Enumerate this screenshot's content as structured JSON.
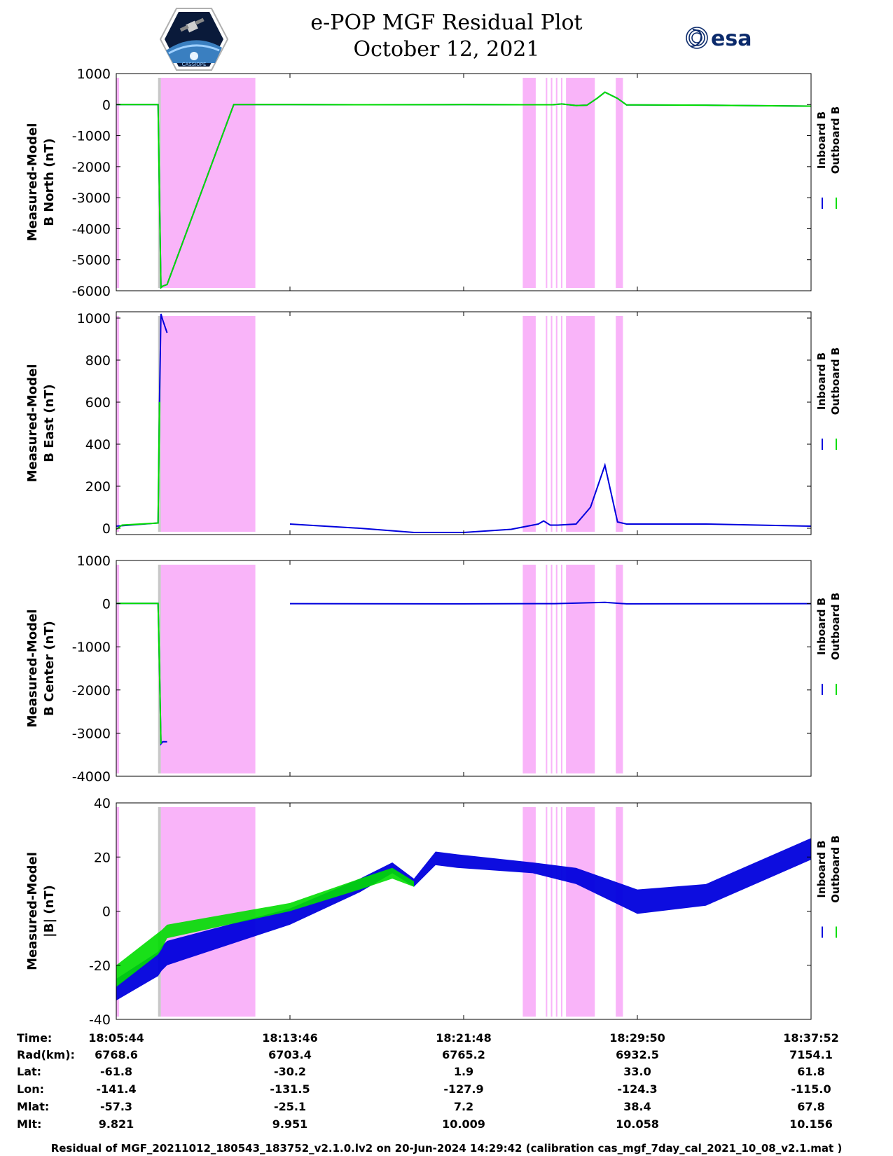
{
  "title": {
    "line1": "e-POP MGF Residual Plot",
    "line2": "October 12, 2021"
  },
  "logos": {
    "left": "CASSIOPE",
    "right": "esa"
  },
  "colors": {
    "inboard": "#0000dd",
    "outboard": "#00dd00",
    "highlight": "#f9b4f9",
    "gap": "#c8c8c8"
  },
  "legend": [
    "Inboard B",
    "Outboard B"
  ],
  "chart_data": [
    {
      "type": "line",
      "ylabel": [
        "Measured-Model",
        "B North (nT)"
      ],
      "ylim": [
        -6000,
        1000
      ],
      "yticks": [
        1000,
        0,
        -1000,
        -2000,
        -3000,
        -4000,
        -5000,
        -6000
      ],
      "series": [
        {
          "name": "Inboard B",
          "x": [
            "18:05:44",
            "18:07:40",
            "18:07:44",
            "18:07:48",
            "18:07:53",
            "18:08:05",
            "18:11:10",
            "18:13:46",
            "18:17:00",
            "18:21:48",
            "18:24:30",
            "18:25:55",
            "18:26:20",
            "18:27:00",
            "18:27:30",
            "18:27:58",
            "18:28:20",
            "18:28:55",
            "18:29:20",
            "18:29:50",
            "18:33:00",
            "18:37:52"
          ],
          "y": [
            0,
            0,
            -3000,
            -5900,
            -5850,
            -5800,
            0,
            0,
            -5,
            0,
            -5,
            -5,
            20,
            -30,
            -20,
            200,
            400,
            200,
            -10,
            -10,
            -20,
            -50
          ]
        },
        {
          "name": "Outboard B",
          "x": [
            "18:05:44",
            "18:07:40",
            "18:07:44",
            "18:07:48",
            "18:07:53",
            "18:08:05",
            "18:11:10",
            "18:13:46",
            "18:17:00",
            "18:21:48",
            "18:24:30",
            "18:25:55",
            "18:26:20",
            "18:27:00",
            "18:27:30",
            "18:27:58",
            "18:28:20",
            "18:28:55",
            "18:29:20",
            "18:29:50",
            "18:33:00",
            "18:37:52"
          ],
          "y": [
            0,
            0,
            -3000,
            -5900,
            -5850,
            -5800,
            0,
            0,
            -5,
            0,
            -5,
            -5,
            20,
            -30,
            -20,
            200,
            400,
            200,
            -10,
            -10,
            -20,
            -50
          ]
        }
      ]
    },
    {
      "type": "line",
      "ylabel": [
        "Measured-Model",
        "B East (nT)"
      ],
      "ylim": [
        -30,
        1030
      ],
      "yticks": [
        1000,
        800,
        600,
        400,
        200,
        0
      ],
      "series": [
        {
          "name": "Inboard B",
          "x": [
            "18:05:44",
            "18:07:40",
            "18:07:44",
            "18:07:48",
            "18:07:53",
            "18:08:05",
            "18:11:10",
            "18:13:46",
            "18:17:00",
            "18:19:30",
            "18:21:48",
            "18:24:00",
            "18:25:15",
            "18:25:30",
            "18:25:48",
            "18:26:10",
            "18:27:00",
            "18:27:40",
            "18:28:20",
            "18:28:55",
            "18:29:20",
            "18:33:00",
            "18:37:52"
          ],
          "y": [
            10,
            25,
            600,
            1020,
            990,
            930,
            null,
            20,
            0,
            -20,
            -20,
            -5,
            20,
            35,
            15,
            15,
            20,
            100,
            300,
            30,
            20,
            20,
            10
          ]
        },
        {
          "name": "Outboard B",
          "x": [
            "18:05:44",
            "18:06:00",
            "18:07:40",
            "18:07:44"
          ],
          "y": [
            -5,
            15,
            25,
            600
          ]
        }
      ]
    },
    {
      "type": "line",
      "ylabel": [
        "Measured-Model",
        "B Center (nT)"
      ],
      "ylim": [
        -4000,
        1000
      ],
      "yticks": [
        1000,
        0,
        -1000,
        -2000,
        -3000,
        -4000
      ],
      "series": [
        {
          "name": "Inboard B",
          "x": [
            "18:05:44",
            "18:07:40",
            "18:07:44",
            "18:07:48",
            "18:07:53",
            "18:08:05",
            "18:11:10",
            "18:13:46",
            "18:21:48",
            "18:26:00",
            "18:28:20",
            "18:29:20",
            "18:37:52"
          ],
          "y": [
            5,
            5,
            -1500,
            -3250,
            -3200,
            -3200,
            null,
            0,
            -5,
            0,
            30,
            -5,
            0
          ]
        },
        {
          "name": "Outboard B",
          "x": [
            "18:05:44",
            "18:07:40",
            "18:07:44",
            "18:07:48"
          ],
          "y": [
            5,
            5,
            -1500,
            -3250
          ]
        }
      ]
    },
    {
      "type": "area",
      "ylabel": [
        "Measured-Model",
        "|B| (nT)"
      ],
      "ylim": [
        -40,
        40
      ],
      "yticks": [
        40,
        20,
        0,
        -20,
        -40
      ],
      "series": [
        {
          "name": "Inboard B",
          "x": [
            "18:05:44",
            "18:07:40",
            "18:07:50",
            "18:08:05",
            "18:13:46",
            "18:17:00",
            "18:18:30",
            "18:19:30",
            "18:20:30",
            "18:21:30",
            "18:25:00",
            "18:27:00",
            "18:29:50",
            "18:33:00",
            "18:37:52"
          ],
          "y_low": [
            -33,
            -24,
            -22,
            -20,
            -5,
            7,
            14,
            9,
            17,
            16,
            14,
            10,
            -1,
            2,
            19
          ],
          "y_high": [
            -25,
            -15,
            -13,
            -11,
            1,
            12,
            18,
            12,
            22,
            21,
            18,
            16,
            8,
            10,
            27
          ]
        },
        {
          "name": "Outboard B",
          "x": [
            "18:05:44",
            "18:07:40",
            "18:07:50",
            "18:08:05",
            "18:13:46",
            "18:17:00",
            "18:18:30",
            "18:19:30"
          ],
          "y_low": [
            -28,
            -16,
            -14,
            -10,
            0,
            8,
            12,
            9
          ],
          "y_high": [
            -20,
            -8,
            -7,
            -5,
            3,
            12,
            16,
            11
          ]
        }
      ]
    }
  ],
  "shaded_intervals": [
    {
      "start": "18:05:44",
      "end": "18:05:52",
      "kind": "highlight"
    },
    {
      "start": "18:07:40",
      "end": "18:07:48",
      "kind": "gap"
    },
    {
      "start": "18:07:48",
      "end": "18:12:10",
      "kind": "highlight"
    },
    {
      "start": "18:24:32",
      "end": "18:25:08",
      "kind": "highlight"
    },
    {
      "start": "18:25:36",
      "end": "18:25:40",
      "kind": "highlight"
    },
    {
      "start": "18:25:50",
      "end": "18:25:54",
      "kind": "highlight"
    },
    {
      "start": "18:26:04",
      "end": "18:26:08",
      "kind": "highlight"
    },
    {
      "start": "18:26:18",
      "end": "18:26:22",
      "kind": "highlight"
    },
    {
      "start": "18:26:32",
      "end": "18:27:52",
      "kind": "highlight"
    },
    {
      "start": "18:28:50",
      "end": "18:29:10",
      "kind": "highlight"
    }
  ],
  "x_ticks": [
    "18:05:44",
    "18:13:46",
    "18:21:48",
    "18:29:50",
    "18:37:52"
  ],
  "ephemeris": {
    "labels": [
      "Time:",
      "Rad(km):",
      "Lat:",
      "Lon:",
      "Mlat:",
      "Mlt:"
    ],
    "columns": [
      [
        "18:05:44",
        "6768.6",
        "-61.8",
        "-141.4",
        "-57.3",
        "9.821"
      ],
      [
        "18:13:46",
        "6703.4",
        "-30.2",
        "-131.5",
        "-25.1",
        "9.951"
      ],
      [
        "18:21:48",
        "6765.2",
        "1.9",
        "-127.9",
        "7.2",
        "10.009"
      ],
      [
        "18:29:50",
        "6932.5",
        "33.0",
        "-124.3",
        "38.4",
        "10.058"
      ],
      [
        "18:37:52",
        "7154.1",
        "61.8",
        "-115.0",
        "67.8",
        "10.156"
      ]
    ]
  },
  "footer": "Residual of MGF_20211012_180543_183752_v2.1.0.lv2 on 20-Jun-2024 14:29:42 (calibration cas_mgf_7day_cal_2021_10_08_v2.1.mat )"
}
